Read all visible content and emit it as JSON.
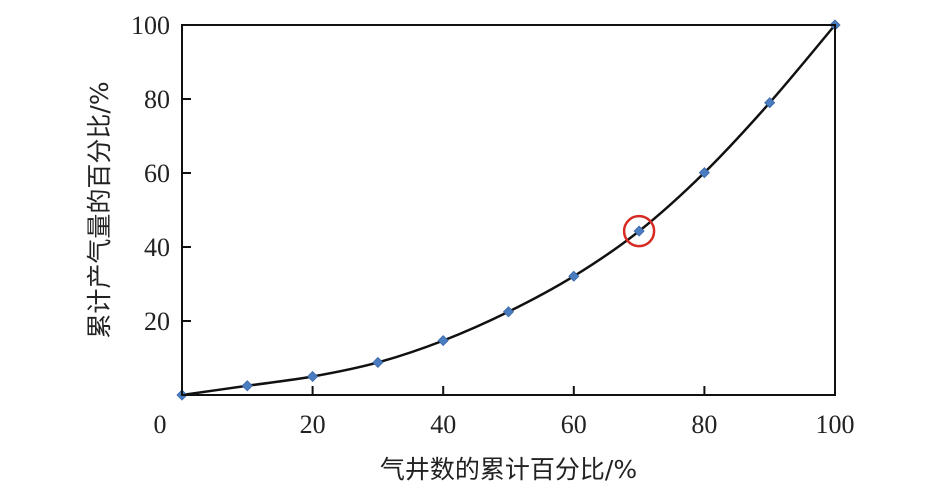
{
  "chart_data": {
    "type": "scatter",
    "xlabel": "气井数的累计百分比/%",
    "ylabel": "累计产气量的百分比/%",
    "xlim": [
      0,
      100
    ],
    "ylim": [
      0,
      100
    ],
    "x_ticks": [
      "0",
      "20",
      "40",
      "60",
      "80",
      "100"
    ],
    "y_ticks": [
      "20",
      "40",
      "60",
      "80",
      "100"
    ],
    "grid": false,
    "series": [
      {
        "marker": "diamond",
        "marker_color": "#4a7cc0",
        "line_color": "#111111",
        "line_style": "smooth",
        "points": [
          {
            "x": 0,
            "y": 0
          },
          {
            "x": 10,
            "y": 2.5
          },
          {
            "x": 20,
            "y": 5
          },
          {
            "x": 30,
            "y": 8.8
          },
          {
            "x": 40,
            "y": 14.7
          },
          {
            "x": 50,
            "y": 22.5
          },
          {
            "x": 60,
            "y": 32.1
          },
          {
            "x": 70,
            "y": 44.3
          },
          {
            "x": 80,
            "y": 60.1
          },
          {
            "x": 90,
            "y": 79
          },
          {
            "x": 100,
            "y": 100
          }
        ]
      }
    ],
    "annotations": [
      {
        "type": "circle",
        "x": 70,
        "y": 44.3,
        "color": "#d62a22"
      }
    ]
  }
}
